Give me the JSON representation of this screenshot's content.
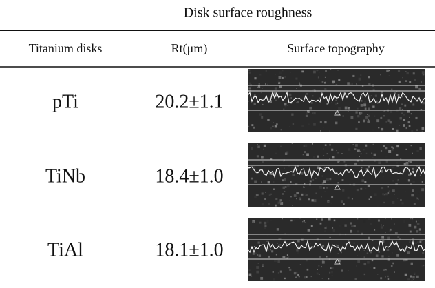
{
  "title": "Disk surface roughness",
  "table": {
    "header": [
      "Titanium disks",
      "Rt(μm)",
      "Surface topography"
    ],
    "rows": [
      [
        "pTi",
        "20.2±1.1"
      ],
      [
        "TiNb",
        "18.4±1.0"
      ],
      [
        "TiAl",
        "18.1±1.0"
      ]
    ]
  }
}
